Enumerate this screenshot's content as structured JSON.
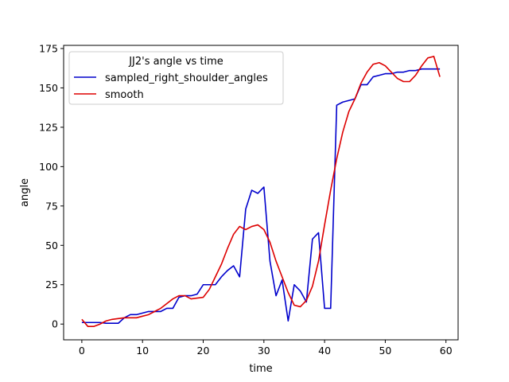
{
  "chart_data": {
    "type": "line",
    "xlabel": "time",
    "ylabel": "angle",
    "xlim": [
      -3,
      62
    ],
    "ylim": [
      -10,
      177
    ],
    "xticks": [
      0,
      10,
      20,
      30,
      40,
      50,
      60
    ],
    "yticks": [
      0,
      25,
      50,
      75,
      100,
      125,
      150,
      175
    ],
    "legend": {
      "title": "JJ2's angle vs time",
      "placement": "top-left"
    },
    "series": [
      {
        "name": "sampled_right_shoulder_angles",
        "color": "#0000cc",
        "x": [
          0,
          1,
          2,
          3,
          4,
          5,
          6,
          7,
          8,
          9,
          10,
          11,
          12,
          13,
          14,
          15,
          16,
          17,
          18,
          19,
          20,
          21,
          22,
          23,
          24,
          25,
          26,
          27,
          28,
          29,
          30,
          31,
          32,
          33,
          34,
          35,
          36,
          37,
          38,
          39,
          40,
          41,
          42,
          43,
          44,
          45,
          46,
          47,
          48,
          49,
          50,
          51,
          52,
          53,
          54,
          55,
          56,
          57,
          58,
          59
        ],
        "values": [
          1,
          1,
          1,
          1,
          0.5,
          0.5,
          0.5,
          4,
          6,
          6,
          7,
          8,
          8,
          8,
          10,
          10,
          17,
          18,
          18,
          19,
          25,
          25,
          25,
          30,
          34,
          37,
          30,
          73,
          85,
          83,
          87,
          40,
          18,
          28,
          2,
          25,
          21,
          14,
          54,
          58,
          10,
          10,
          139,
          141,
          142,
          143,
          152,
          152,
          157,
          158,
          159,
          159,
          160,
          160,
          161,
          161,
          162,
          162,
          162,
          162
        ]
      },
      {
        "name": "smooth",
        "color": "#dd0000",
        "x": [
          0,
          1,
          2,
          3,
          4,
          5,
          6,
          7,
          8,
          9,
          10,
          11,
          12,
          13,
          14,
          15,
          16,
          17,
          18,
          19,
          20,
          21,
          22,
          23,
          24,
          25,
          26,
          27,
          28,
          29,
          30,
          31,
          32,
          33,
          34,
          35,
          36,
          37,
          38,
          39,
          40,
          41,
          42,
          43,
          44,
          45,
          46,
          47,
          48,
          49,
          50,
          51,
          52,
          53,
          54,
          55,
          56,
          57,
          58,
          59
        ],
        "values": [
          3,
          -1.5,
          -1.5,
          0,
          2,
          3,
          3.5,
          4,
          4,
          4,
          5,
          6,
          8,
          10,
          13,
          16,
          18,
          18,
          16,
          16.5,
          17,
          22,
          30,
          38,
          48,
          57,
          62,
          60,
          62,
          63,
          60,
          52,
          40,
          30,
          20,
          12,
          11,
          15,
          24,
          40,
          63,
          85,
          105,
          122,
          135,
          143,
          153,
          160,
          165,
          166,
          164,
          160,
          156,
          154,
          154,
          158,
          164,
          169,
          170,
          157
        ]
      }
    ]
  }
}
